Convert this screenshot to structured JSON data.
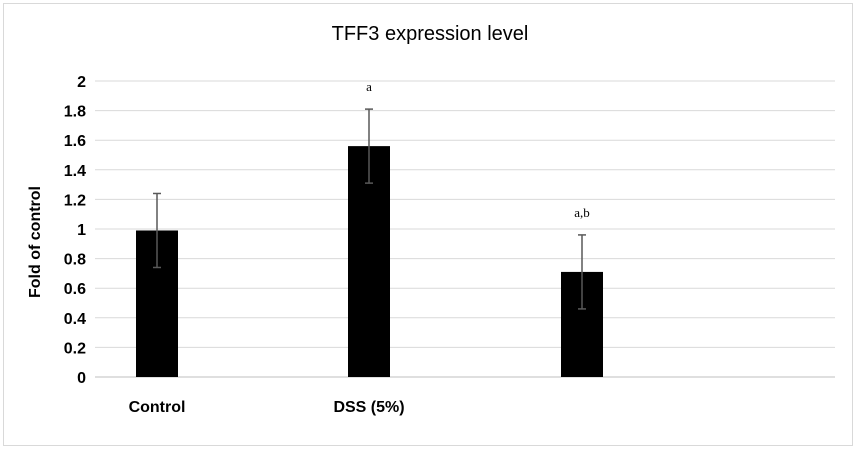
{
  "chart_data": {
    "type": "bar",
    "title": "TFF3 expression level",
    "ylabel": "Fold of control",
    "xlabel": "",
    "ylim": [
      0,
      2
    ],
    "yticks": [
      "0",
      "0.2",
      "0.4",
      "0.6",
      "0.8",
      "1",
      "1.2",
      "1.4",
      "1.6",
      "1.8",
      "2"
    ],
    "categories": [
      "Control",
      "DSS (5%)",
      ""
    ],
    "values": [
      0.99,
      1.56,
      0.71
    ],
    "errors": [
      0.25,
      0.25,
      0.25
    ],
    "annotations": [
      "",
      "a",
      "a,b"
    ],
    "grid": true,
    "legend": "none",
    "bar_color": "#000000",
    "error_color": "#595959"
  }
}
